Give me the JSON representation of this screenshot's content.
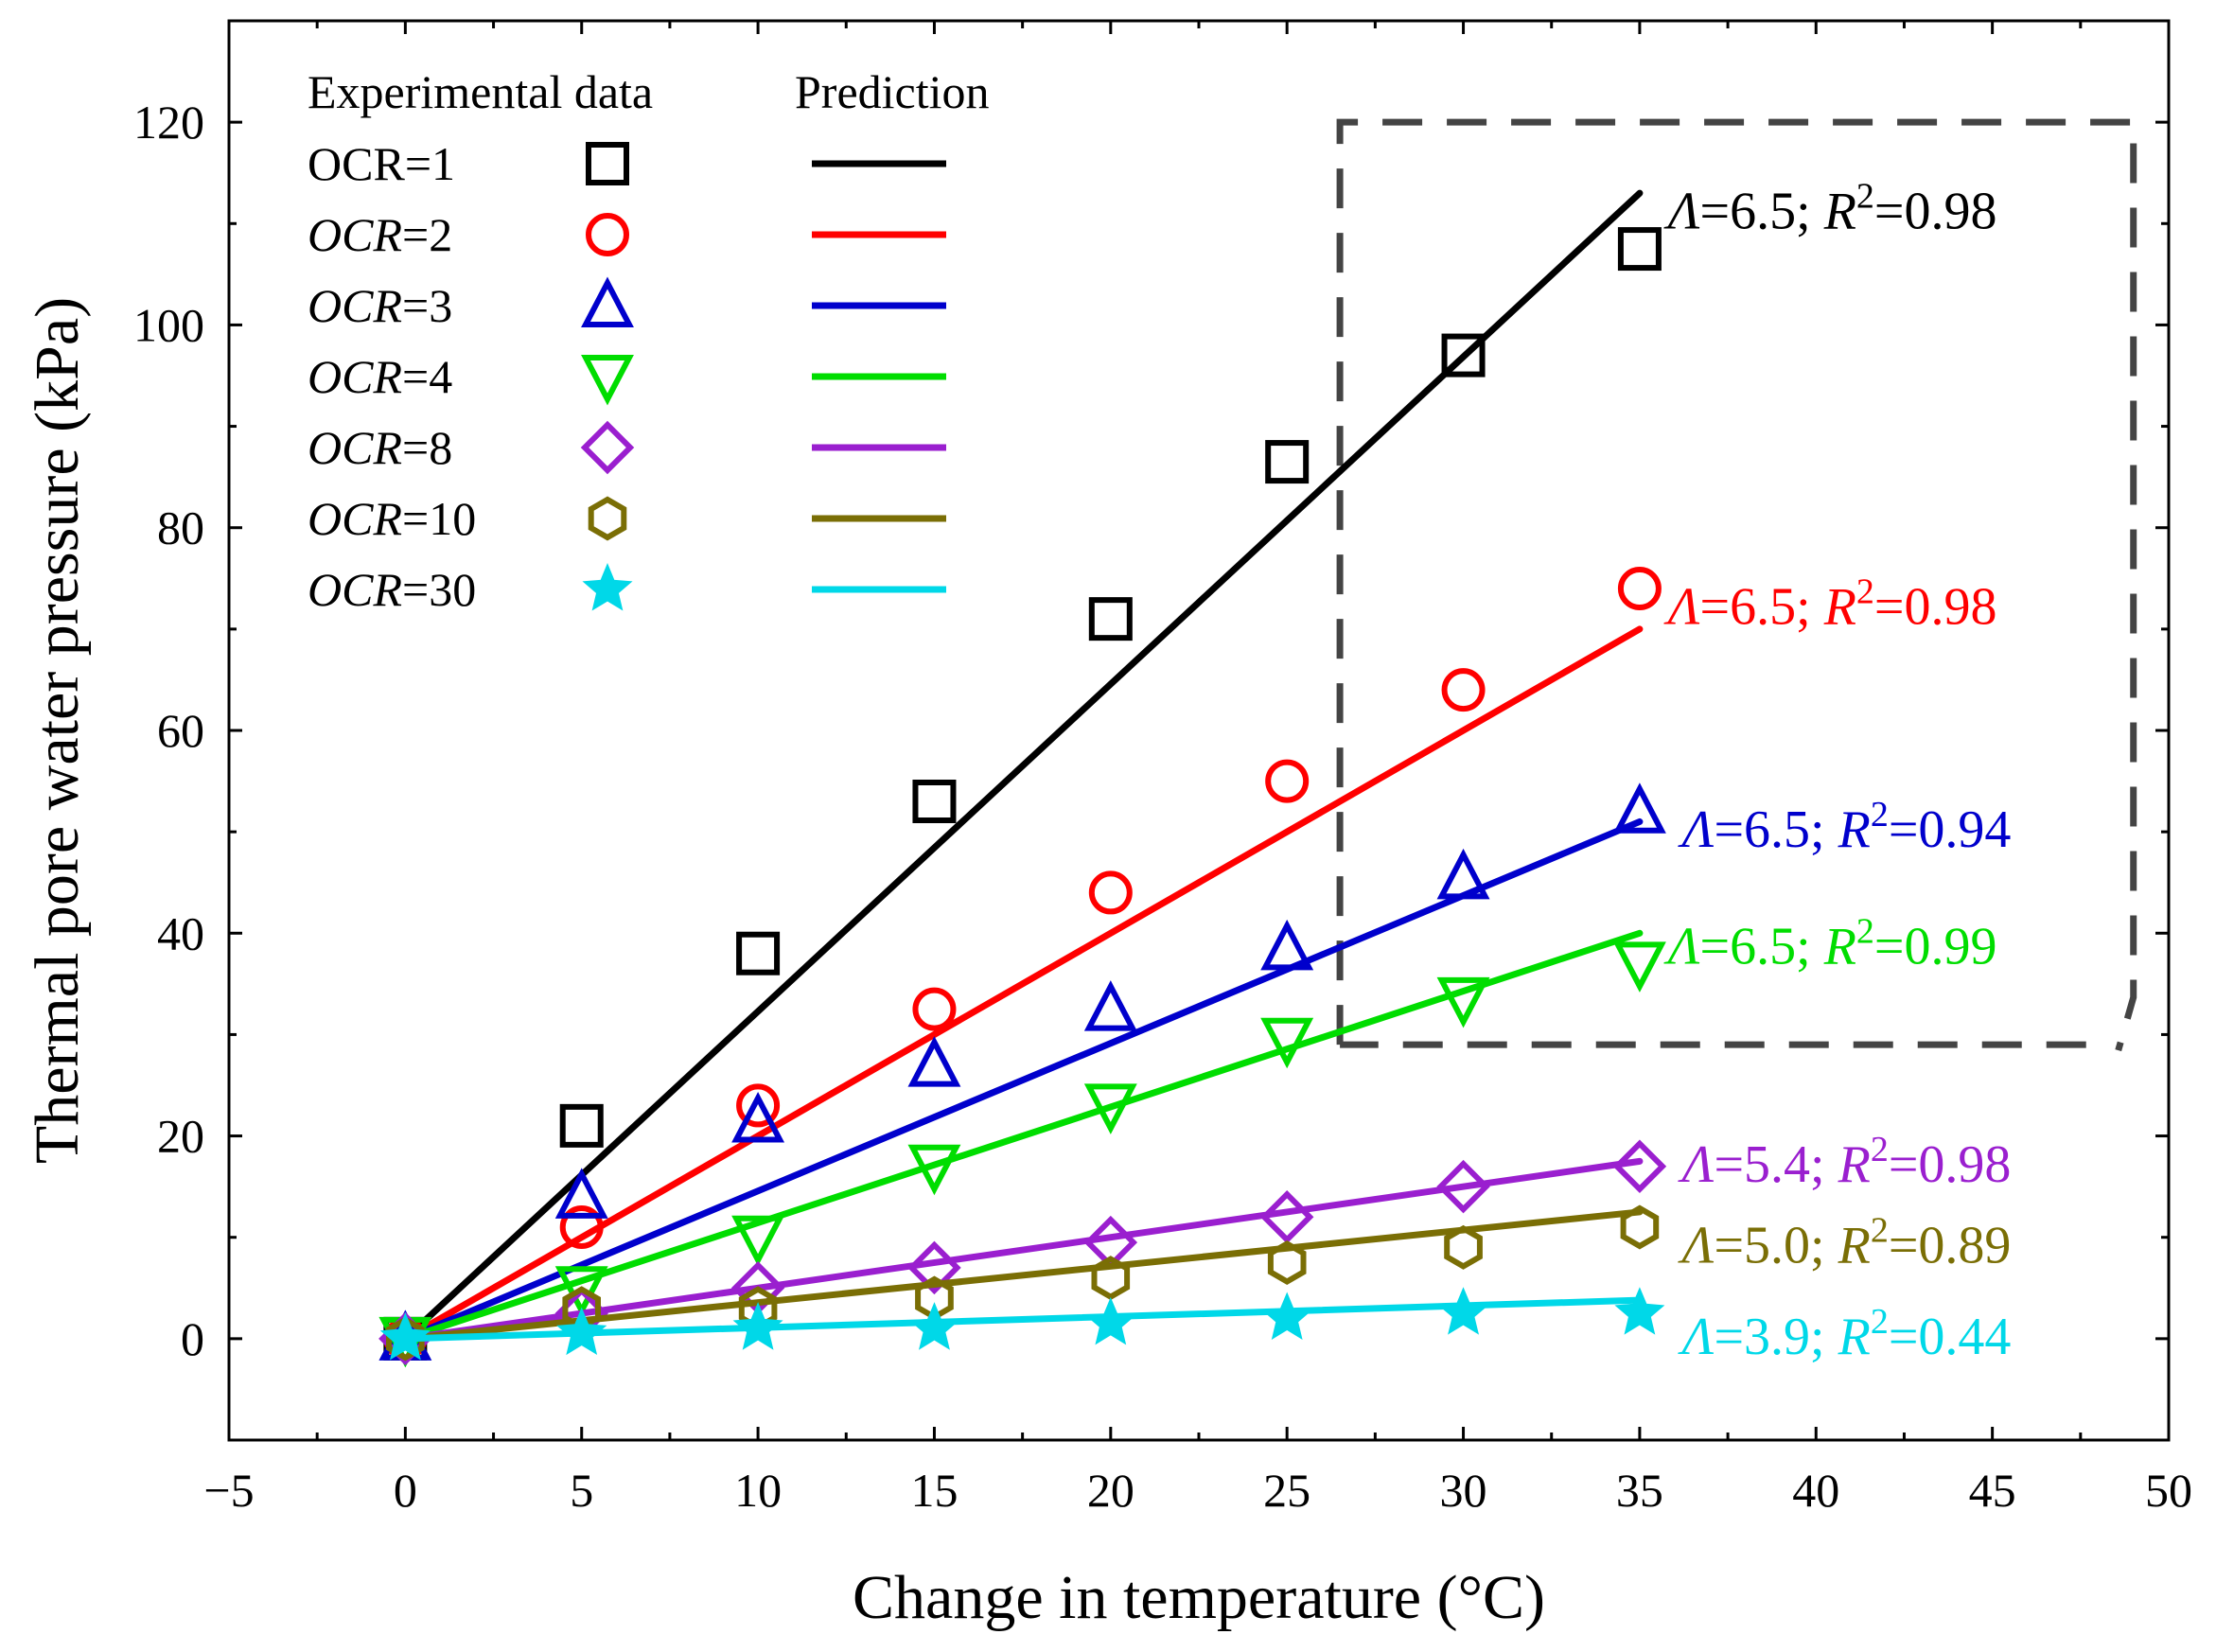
{
  "chart_data": {
    "type": "scatter",
    "title": "",
    "xlabel": "Change in temperature (°C)",
    "ylabel": "Thermal pore water pressure  (kPa)",
    "xlim": [
      -5,
      50
    ],
    "ylim": [
      -10,
      130
    ],
    "xticks": [
      -5,
      0,
      5,
      10,
      15,
      20,
      25,
      30,
      35,
      40,
      45,
      50
    ],
    "yticks": [
      0,
      20,
      40,
      60,
      80,
      100,
      120
    ],
    "xticklabels": [
      "−5",
      "0",
      "5",
      "10",
      "15",
      "20",
      "25",
      "30",
      "35",
      "40",
      "45",
      "50"
    ],
    "yticklabels": [
      "0",
      "20",
      "40",
      "60",
      "80",
      "100",
      "120"
    ],
    "grid": false,
    "legend": {
      "position": "top-left",
      "header_experimental": "Experimental data",
      "header_prediction": "Prediction"
    },
    "highlight_box": {
      "x_range": [
        26.5,
        48.5
      ],
      "y_range": [
        29,
        120
      ],
      "style": "dashed"
    },
    "x": [
      0,
      5,
      10,
      15,
      20,
      25,
      30,
      35
    ],
    "series": [
      {
        "name": "OCR=1",
        "label_prefix": "OCR",
        "label_value": "=1",
        "label_italic": false,
        "color": "#000000",
        "marker": "square",
        "experimental": [
          0,
          21,
          38,
          53,
          71,
          86.5,
          97,
          107.5
        ],
        "prediction_x": [
          0,
          35
        ],
        "prediction_y": [
          0,
          113
        ],
        "annotation": {
          "lambda_label": "Λ",
          "lambda_value": "=6.5;",
          "r_label": "R",
          "r_sup": "2",
          "r_value": "=0.98"
        },
        "annotation_anchor": [
          35.8,
          109.5
        ]
      },
      {
        "name": "OCR=2",
        "label_prefix": "OCR",
        "label_value": "=2",
        "label_italic": true,
        "color": "#ff0000",
        "marker": "circle",
        "experimental": [
          0,
          11,
          23,
          32.5,
          44,
          55,
          64,
          74
        ],
        "prediction_x": [
          0,
          35
        ],
        "prediction_y": [
          0,
          70
        ],
        "annotation": {
          "lambda_label": "Λ",
          "lambda_value": "=6.5;",
          "r_label": "R",
          "r_sup": "2",
          "r_value": "=0.98"
        },
        "annotation_anchor": [
          35.8,
          70.5
        ]
      },
      {
        "name": "OCR=3",
        "label_prefix": "OCR",
        "label_value": "=3",
        "label_italic": true,
        "color": "#0000cc",
        "marker": "triangle-up",
        "experimental": [
          0,
          14,
          21.5,
          27,
          32.5,
          38.5,
          45.5,
          52
        ],
        "prediction_x": [
          0,
          35
        ],
        "prediction_y": [
          0,
          51
        ],
        "annotation": {
          "lambda_label": "Λ",
          "lambda_value": "=6.5;",
          "r_label": "R",
          "r_sup": "2",
          "r_value": "=0.94"
        },
        "annotation_anchor": [
          36.2,
          48.5
        ]
      },
      {
        "name": "OCR=4",
        "label_prefix": "OCR",
        "label_value": "=4",
        "label_italic": true,
        "color": "#00dd00",
        "marker": "triangle-down",
        "experimental": [
          0,
          5,
          10,
          17,
          23,
          29.5,
          33.5,
          37
        ],
        "prediction_x": [
          0,
          35
        ],
        "prediction_y": [
          0,
          40
        ],
        "annotation": {
          "lambda_label": "Λ",
          "lambda_value": "=6.5;",
          "r_label": "R",
          "r_sup": "2",
          "r_value": "=0.99"
        },
        "annotation_anchor": [
          35.8,
          37
        ]
      },
      {
        "name": "OCR=8",
        "label_prefix": "OCR",
        "label_value": "=8",
        "label_italic": true,
        "color": "#9a1fcf",
        "marker": "diamond",
        "experimental": [
          0,
          2.5,
          5,
          7,
          9.5,
          12,
          15,
          17
        ],
        "prediction_x": [
          0,
          35
        ],
        "prediction_y": [
          0,
          17.5
        ],
        "annotation": {
          "lambda_label": "Λ",
          "lambda_value": "=5.4;",
          "r_label": "R",
          "r_sup": "2",
          "r_value": "=0.98"
        },
        "annotation_anchor": [
          36.2,
          15.5
        ]
      },
      {
        "name": "OCR=10",
        "label_prefix": "OCR",
        "label_value": "=10",
        "label_italic": true,
        "color": "#7a6e05",
        "marker": "hexagon",
        "experimental": [
          0,
          3,
          3,
          4,
          6,
          7.5,
          9,
          11
        ],
        "prediction_x": [
          0,
          35
        ],
        "prediction_y": [
          0,
          12.5
        ],
        "annotation": {
          "lambda_label": "Λ",
          "lambda_value": "=5.0;",
          "r_label": "R",
          "r_sup": "2",
          "r_value": "=0.89"
        },
        "annotation_anchor": [
          36.2,
          7.5
        ]
      },
      {
        "name": "OCR=30",
        "label_prefix": "OCR",
        "label_value": "=30",
        "label_italic": true,
        "color": "#00d8e8",
        "marker": "star",
        "experimental": [
          0,
          0.5,
          1,
          1,
          1.5,
          2,
          2.5,
          2.5
        ],
        "prediction_x": [
          0,
          35
        ],
        "prediction_y": [
          0,
          3.8
        ],
        "annotation": {
          "lambda_label": "Λ",
          "lambda_value": "=3.9;",
          "r_label": "R",
          "r_sup": "2",
          "r_value": "=0.44"
        },
        "annotation_anchor": [
          36.2,
          -1.5
        ]
      }
    ]
  }
}
